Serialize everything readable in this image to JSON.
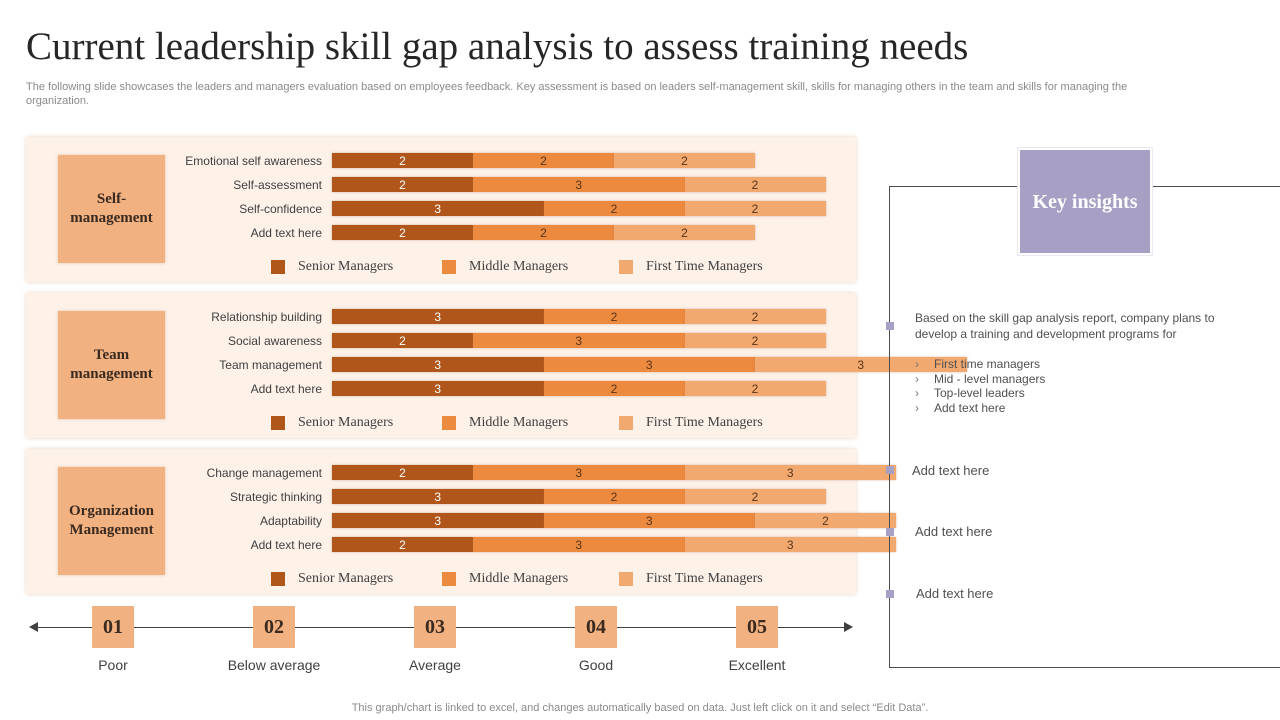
{
  "title": "Current leadership skill gap analysis to assess training needs",
  "subtitle": "The following slide showcases the leaders and managers evaluation based on employees feedback. Key assessment is based on leaders self-management skill, skills for managing others in the team and skills for managing the organization.",
  "colors": {
    "senior": "#b0561a",
    "middle": "#ec8a3f",
    "first": "#f2a96f",
    "panel": "#fdf1e8",
    "category": "#f2b180",
    "insights": "#a79fc4"
  },
  "chart_data": [
    {
      "type": "bar",
      "title": "Self-management",
      "categories": [
        "Emotional self awareness",
        "Self-assessment",
        "Self-confidence",
        "Add text here"
      ],
      "series": [
        {
          "name": "Senior Managers",
          "values": [
            2,
            2,
            3,
            2
          ]
        },
        {
          "name": "Middle Managers",
          "values": [
            2,
            3,
            2,
            2
          ]
        },
        {
          "name": "First Time Managers",
          "values": [
            2,
            2,
            2,
            2
          ]
        }
      ],
      "stacked": true,
      "orientation": "horizontal"
    },
    {
      "type": "bar",
      "title": "Team management",
      "categories": [
        "Relationship building",
        "Social awareness",
        "Team management",
        "Add text here"
      ],
      "series": [
        {
          "name": "Senior Managers",
          "values": [
            3,
            2,
            3,
            3
          ]
        },
        {
          "name": "Middle Managers",
          "values": [
            2,
            3,
            3,
            2
          ]
        },
        {
          "name": "First Time Managers",
          "values": [
            2,
            2,
            3,
            2
          ]
        }
      ],
      "stacked": true,
      "orientation": "horizontal"
    },
    {
      "type": "bar",
      "title": "Organization Management",
      "categories": [
        "Change management",
        "Strategic thinking",
        "Adaptability",
        "Add text here"
      ],
      "series": [
        {
          "name": "Senior Managers",
          "values": [
            2,
            3,
            3,
            2
          ]
        },
        {
          "name": "Middle Managers",
          "values": [
            3,
            2,
            3,
            3
          ]
        },
        {
          "name": "First Time Managers",
          "values": [
            3,
            2,
            2,
            3
          ]
        }
      ],
      "stacked": true,
      "orientation": "horizontal"
    }
  ],
  "scale": [
    {
      "num": "01",
      "label": "Poor"
    },
    {
      "num": "02",
      "label": "Below average"
    },
    {
      "num": "03",
      "label": "Average"
    },
    {
      "num": "04",
      "label": "Good"
    },
    {
      "num": "05",
      "label": "Excellent"
    }
  ],
  "insights": {
    "title": "Key insights",
    "paragraph": "Based on the skill gap analysis report, company plans to develop a training and development programs for",
    "list": [
      "First time managers",
      "Mid - level managers",
      "Top-level leaders",
      "Add text here"
    ],
    "items": [
      "Add text here",
      "Add text here",
      "Add text here"
    ]
  },
  "footer": "This graph/chart is linked to excel, and changes automatically based on data. Just left click on it and select “Edit Data”."
}
